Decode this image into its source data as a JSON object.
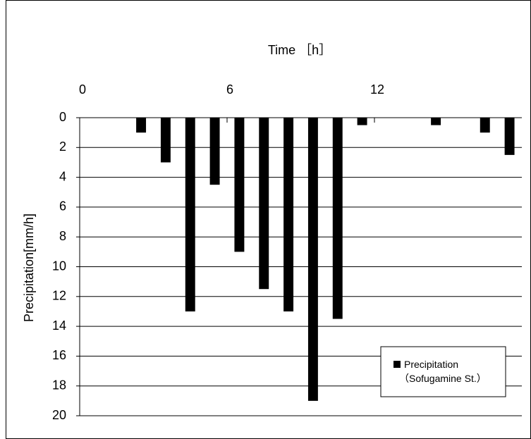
{
  "chart_data": {
    "type": "bar",
    "title": "Time ［h］",
    "y_label": "Precipitation[mm/h]",
    "x": [
      0.5,
      1.5,
      2.5,
      3.5,
      4.5,
      5.5,
      6.5,
      7.5,
      8.5,
      9.5,
      10.5,
      11.5,
      12.5,
      13.5,
      14.5,
      15.5,
      16.5,
      17.5
    ],
    "series": [
      {
        "name": "Precipitation\n（Sofugamine St.）",
        "color": "#000000",
        "values": [
          0,
          0,
          1,
          3,
          13,
          4.5,
          9,
          11.5,
          13,
          19,
          13.5,
          0.5,
          0,
          0,
          0.5,
          0,
          1,
          2.5
        ]
      }
    ],
    "xlim": [
      0,
      18
    ],
    "xticks": [
      0,
      6,
      12
    ],
    "ylim": [
      0,
      20
    ],
    "yticks": [
      0,
      2,
      4,
      6,
      8,
      10,
      12,
      14,
      16,
      18,
      20
    ],
    "y_inverted": true,
    "grid": true,
    "legend": "lower right"
  }
}
